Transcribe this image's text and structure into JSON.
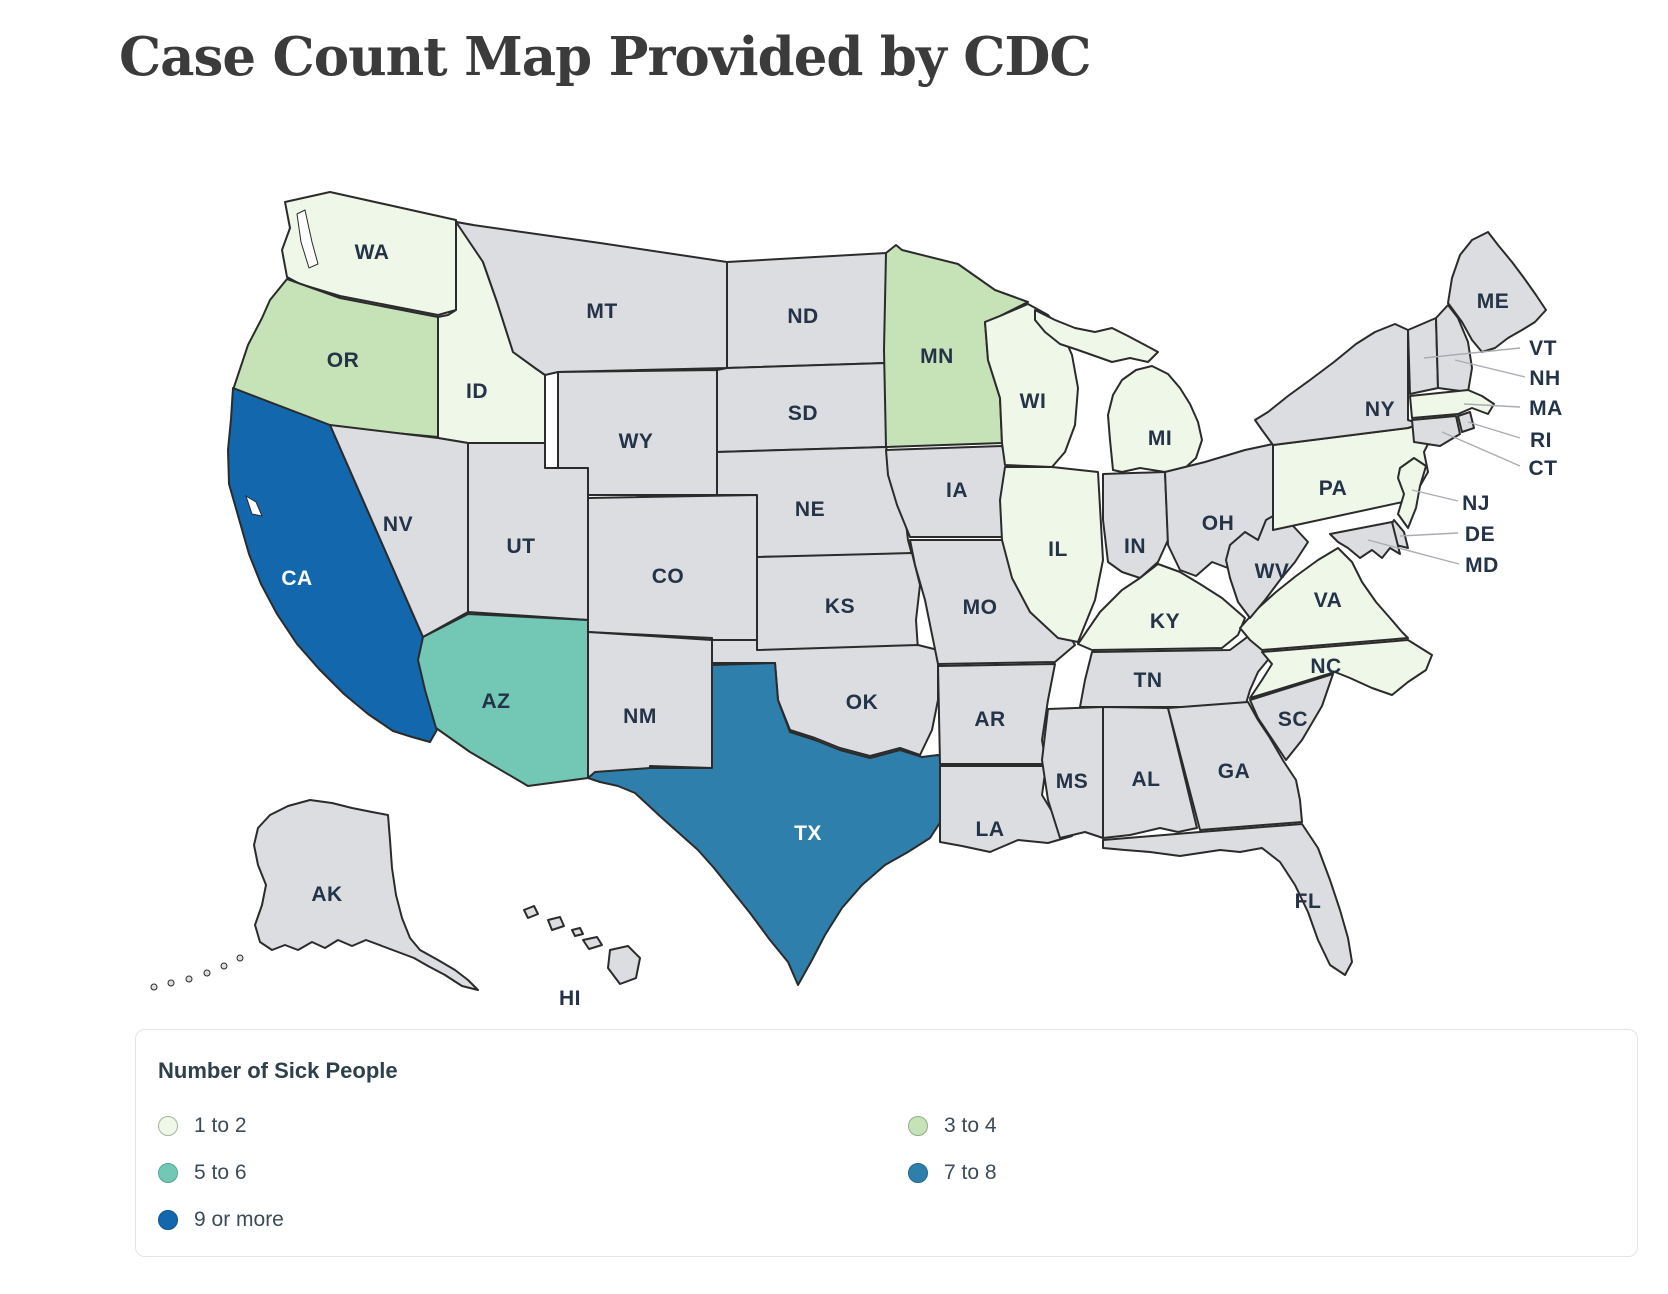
{
  "title": "Case Count Map Provided by CDC",
  "legend": {
    "title": "Number of Sick People",
    "items": [
      {
        "label": "1 to 2",
        "color": "#eef7e8",
        "border": "#a6b5a0"
      },
      {
        "label": "3 to 4",
        "color": "#c6e3b8",
        "border": "#8fae85"
      },
      {
        "label": "5 to 6",
        "color": "#72c7b5",
        "border": "#54a896"
      },
      {
        "label": "7 to 8",
        "color": "#2e7fab",
        "border": "#20688f"
      },
      {
        "label": "9 or more",
        "color": "#1367ad",
        "border": "#0d538c"
      }
    ]
  },
  "map": {
    "no_data_color": "#dcdde0",
    "border_color": "#2b2b2b",
    "label_color": "#243347",
    "label_color_on_dark": "#ffffff",
    "callout_line_color": "#a9adb2",
    "states": [
      {
        "abbr": "WA",
        "category": "1 to 2"
      },
      {
        "abbr": "OR",
        "category": "3 to 4"
      },
      {
        "abbr": "CA",
        "category": "9 or more"
      },
      {
        "abbr": "ID",
        "category": "1 to 2"
      },
      {
        "abbr": "NV",
        "category": "none"
      },
      {
        "abbr": "UT",
        "category": "none"
      },
      {
        "abbr": "AZ",
        "category": "5 to 6"
      },
      {
        "abbr": "MT",
        "category": "none"
      },
      {
        "abbr": "WY",
        "category": "none"
      },
      {
        "abbr": "CO",
        "category": "none"
      },
      {
        "abbr": "NM",
        "category": "none"
      },
      {
        "abbr": "ND",
        "category": "none"
      },
      {
        "abbr": "SD",
        "category": "none"
      },
      {
        "abbr": "NE",
        "category": "none"
      },
      {
        "abbr": "KS",
        "category": "none"
      },
      {
        "abbr": "OK",
        "category": "none"
      },
      {
        "abbr": "TX",
        "category": "7 to 8"
      },
      {
        "abbr": "MN",
        "category": "3 to 4"
      },
      {
        "abbr": "IA",
        "category": "none"
      },
      {
        "abbr": "MO",
        "category": "none"
      },
      {
        "abbr": "AR",
        "category": "none"
      },
      {
        "abbr": "LA",
        "category": "none"
      },
      {
        "abbr": "WI",
        "category": "1 to 2"
      },
      {
        "abbr": "IL",
        "category": "1 to 2"
      },
      {
        "abbr": "MI",
        "category": "1 to 2"
      },
      {
        "abbr": "IN",
        "category": "none"
      },
      {
        "abbr": "OH",
        "category": "none"
      },
      {
        "abbr": "KY",
        "category": "1 to 2"
      },
      {
        "abbr": "TN",
        "category": "none"
      },
      {
        "abbr": "MS",
        "category": "none"
      },
      {
        "abbr": "AL",
        "category": "none"
      },
      {
        "abbr": "GA",
        "category": "none"
      },
      {
        "abbr": "FL",
        "category": "none"
      },
      {
        "abbr": "SC",
        "category": "none"
      },
      {
        "abbr": "NC",
        "category": "1 to 2"
      },
      {
        "abbr": "VA",
        "category": "1 to 2"
      },
      {
        "abbr": "WV",
        "category": "none"
      },
      {
        "abbr": "PA",
        "category": "1 to 2"
      },
      {
        "abbr": "NY",
        "category": "none"
      },
      {
        "abbr": "NJ",
        "category": "1 to 2"
      },
      {
        "abbr": "DE",
        "category": "none"
      },
      {
        "abbr": "MD",
        "category": "none"
      },
      {
        "abbr": "VT",
        "category": "none"
      },
      {
        "abbr": "NH",
        "category": "none"
      },
      {
        "abbr": "MA",
        "category": "1 to 2"
      },
      {
        "abbr": "RI",
        "category": "none"
      },
      {
        "abbr": "CT",
        "category": "none"
      },
      {
        "abbr": "ME",
        "category": "none"
      },
      {
        "abbr": "AK",
        "category": "none"
      },
      {
        "abbr": "HI",
        "category": "none"
      }
    ]
  }
}
